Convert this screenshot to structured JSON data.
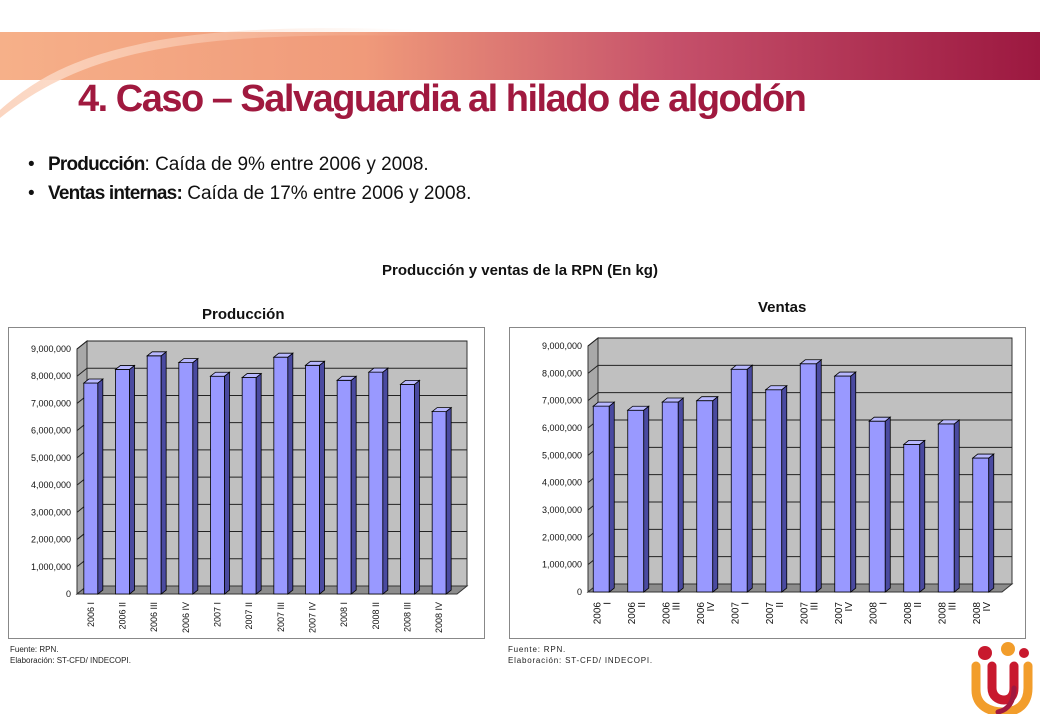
{
  "slide": {
    "title": "4. Caso – Salvaguardia al hilado de algodón",
    "bullets": [
      {
        "label": "Producción",
        "text": ": Caída de 9% entre 2006 y 2008."
      },
      {
        "label": "Ventas internas:",
        "text": " Caída de 17% entre 2006 y 2008."
      }
    ],
    "bullet_glyph": "•",
    "main_chart_title": "Producción y ventas de la RPN (En kg)",
    "accent_color": "#a0193f"
  },
  "notes": {
    "production": {
      "source": "Fuente: RPN.",
      "elaboration": "Elaboración: ST-CFD/ INDECOPI."
    },
    "sales": {
      "source": "Fuente: RPN.",
      "elaboration": "Elaboración: ST-CFD/ INDECOPI."
    }
  },
  "logo": {
    "icon": "indecopi-logo-icon",
    "colors": [
      "#c8192e",
      "#f29d2b",
      "#a0193f"
    ]
  },
  "chart_data": [
    {
      "type": "bar",
      "title": "Producción",
      "categories": [
        "2006 I",
        "2006 II",
        "2006 III",
        "2006 IV",
        "2007 I",
        "2007 II",
        "2007 III",
        "2007 IV",
        "2008 I",
        "2008 II",
        "2008 III",
        "2008 IV"
      ],
      "values": [
        7750000,
        8250000,
        8750000,
        8500000,
        8000000,
        7950000,
        8700000,
        8400000,
        7850000,
        8150000,
        7700000,
        6700000
      ],
      "ylim": [
        0,
        9000000
      ],
      "yticks": [
        "0",
        "1,000,000",
        "2,000,000",
        "3,000,000",
        "4,000,000",
        "5,000,000",
        "6,000,000",
        "7,000,000",
        "8,000,000",
        "9,000,000"
      ],
      "xlabel": "",
      "ylabel": "",
      "grid": true,
      "colors": {
        "bar": "#9999ff",
        "bar_side": "#4a4aa0",
        "bar_top": "#b8b8ff",
        "wall": "#c0c0c0",
        "floor": "#8c8c8c"
      }
    },
    {
      "type": "bar",
      "title": "Ventas",
      "categories": [
        "2006 I",
        "2006 II",
        "2006 III",
        "2006 IV",
        "2007 I",
        "2007 II",
        "2007 III",
        "2007 IV",
        "2008 I",
        "2008 II",
        "2008 III",
        "2008 IV"
      ],
      "values": [
        6800000,
        6650000,
        6950000,
        7000000,
        8150000,
        7400000,
        8350000,
        7900000,
        6250000,
        5400000,
        6150000,
        4900000
      ],
      "ylim": [
        0,
        9000000
      ],
      "yticks": [
        "0",
        "1,000,000",
        "2,000,000",
        "3,000,000",
        "4,000,000",
        "5,000,000",
        "6,000,000",
        "7,000,000",
        "8,000,000",
        "9,000,000"
      ],
      "xlabel": "",
      "ylabel": "",
      "grid": true,
      "colors": {
        "bar": "#9999ff",
        "bar_side": "#4a4aa0",
        "bar_top": "#b8b8ff",
        "wall": "#c0c0c0",
        "floor": "#8c8c8c"
      }
    }
  ]
}
